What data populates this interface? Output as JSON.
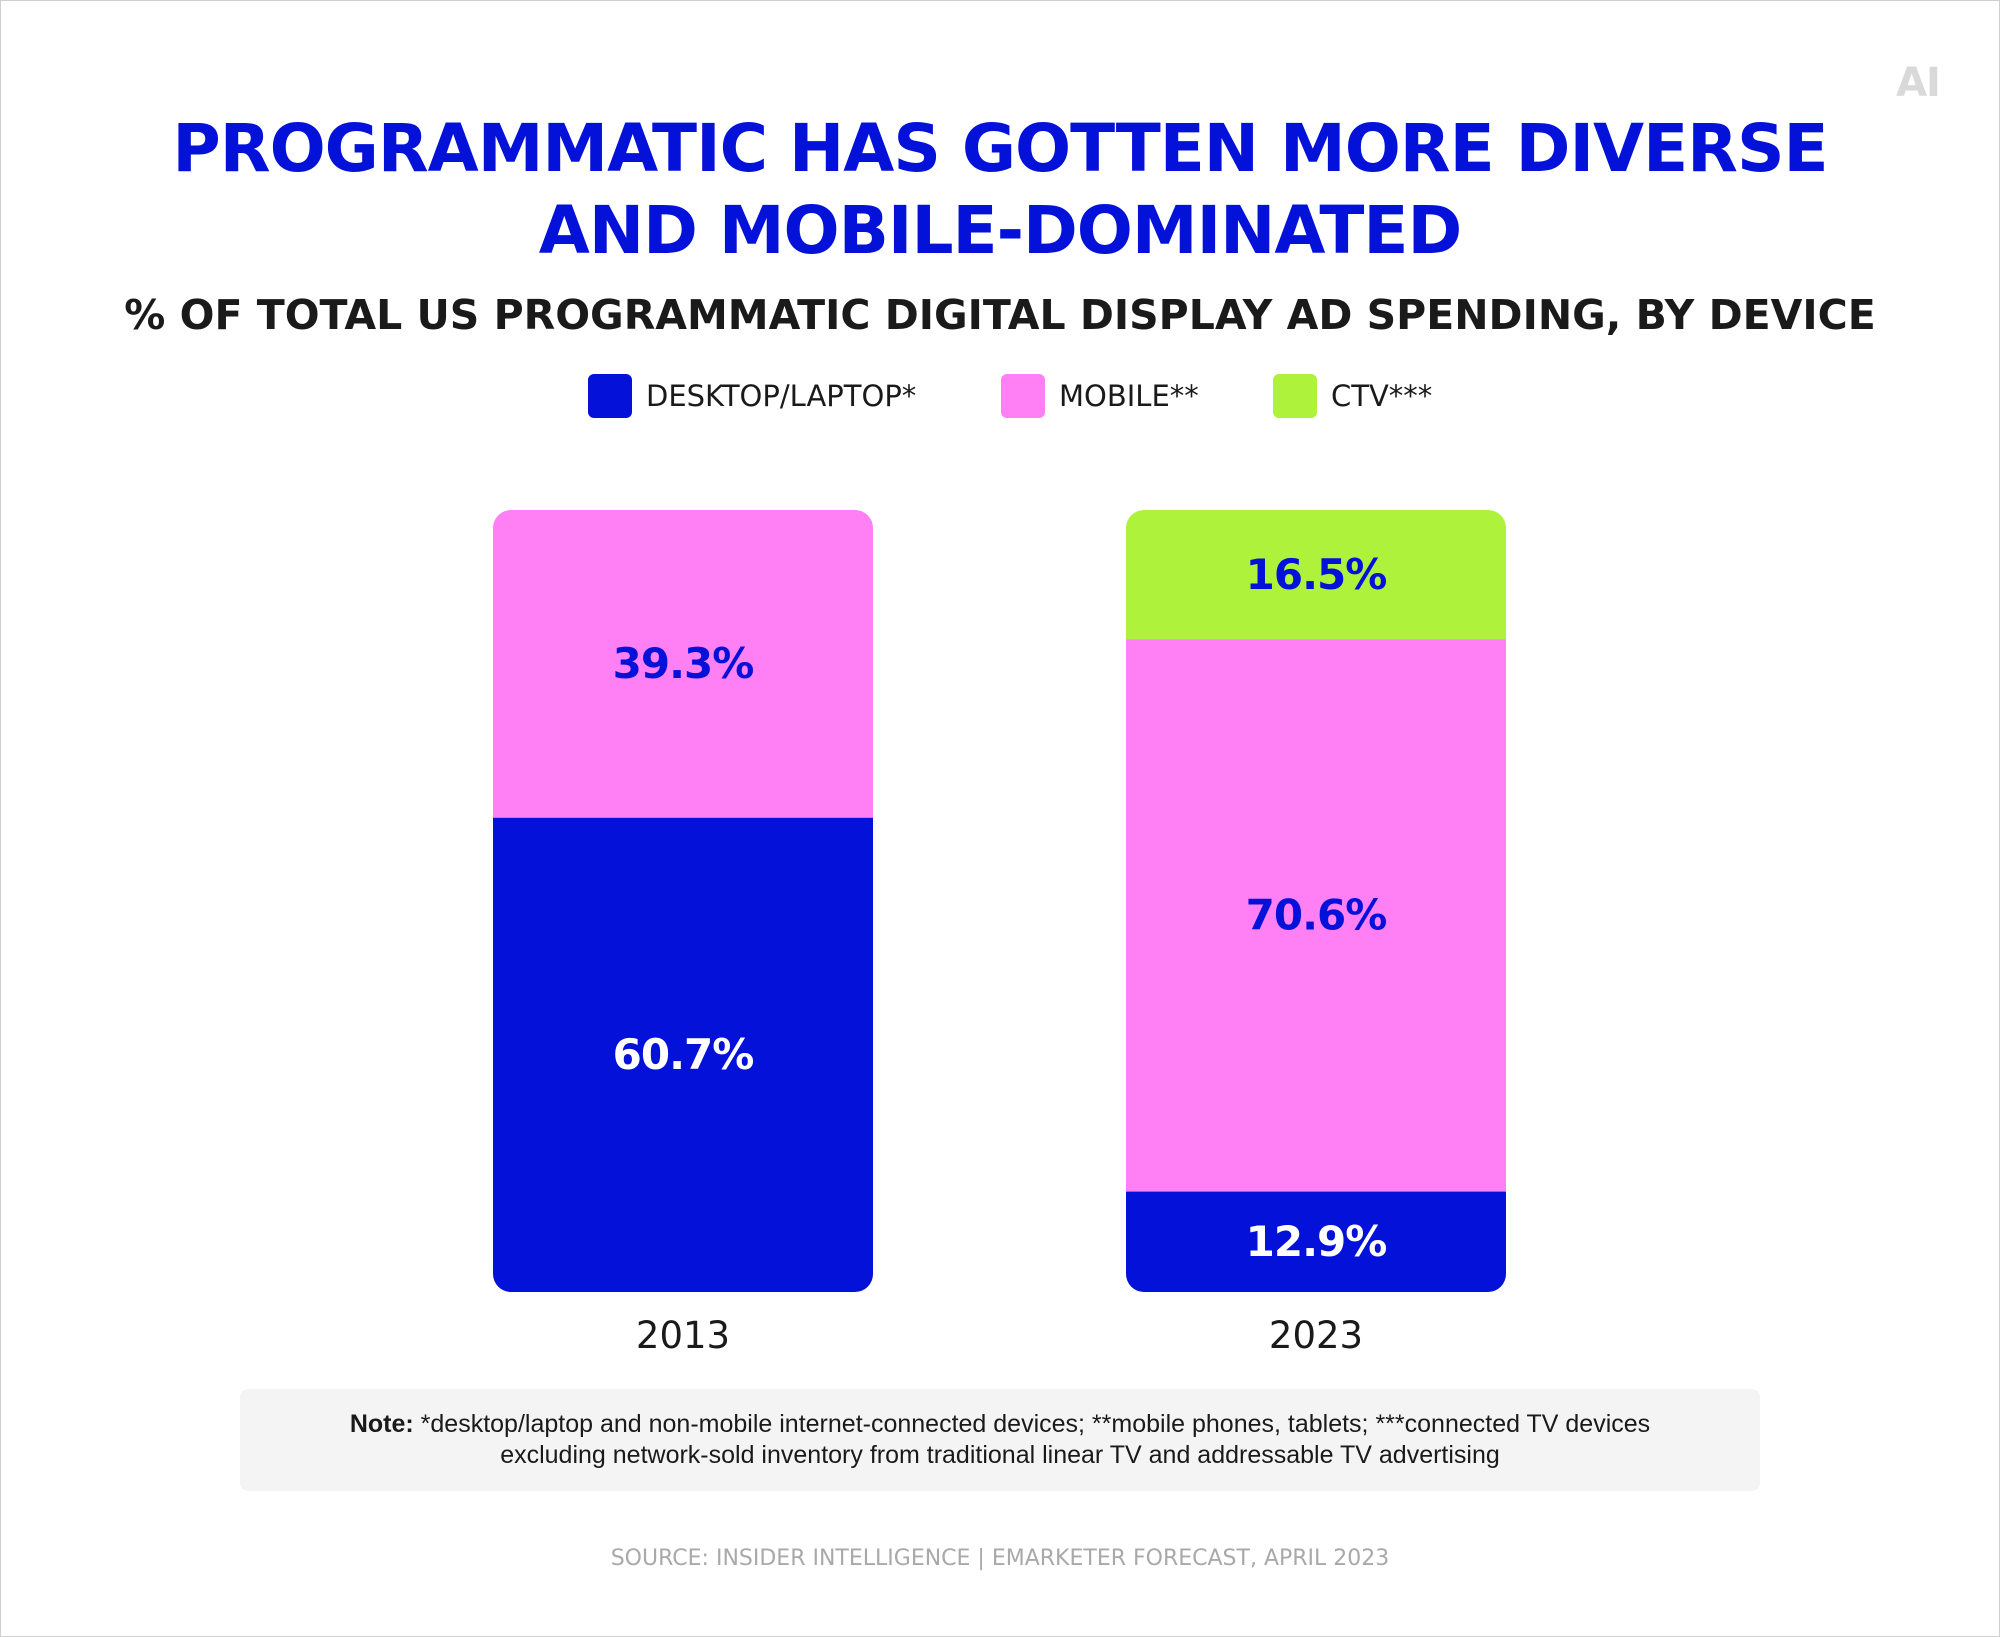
{
  "brand": {
    "logo_text": "AI"
  },
  "title_lines": [
    "PROGRAMMATIC HAS GOTTEN MORE DIVERSE",
    "AND MOBILE-DOMINATED"
  ],
  "subtitle": "% OF TOTAL US PROGRAMMATIC DIGITAL DISPLAY AD SPENDING, BY DEVICE",
  "colors": {
    "desktop": "#0311d9",
    "mobile": "#ff80f5",
    "ctv": "#aef23b",
    "label_on_dark": "#ffffff",
    "label_on_light": "#0311d9"
  },
  "legend": [
    {
      "label": "DESKTOP/LAPTOP*",
      "color": "#0311d9"
    },
    {
      "label": "MOBILE**",
      "color": "#ff80f5"
    },
    {
      "label": "CTV***",
      "color": "#aef23b"
    }
  ],
  "chart_data": {
    "type": "bar",
    "stacked": true,
    "categories": [
      "2013",
      "2023"
    ],
    "series": [
      {
        "name": "DESKTOP/LAPTOP*",
        "values": [
          60.7,
          12.9
        ],
        "labels": [
          "60.7%",
          "12.9%"
        ],
        "color": "#0311d9"
      },
      {
        "name": "MOBILE**",
        "values": [
          39.3,
          70.6
        ],
        "labels": [
          "39.3%",
          "70.6%"
        ],
        "color": "#ff80f5"
      },
      {
        "name": "CTV***",
        "values": [
          0,
          16.5
        ],
        "labels": [
          "",
          "16.5%"
        ],
        "color": "#aef23b"
      }
    ],
    "ylim": [
      0,
      100
    ],
    "unit": "%",
    "title": "% OF TOTAL US PROGRAMMATIC DIGITAL DISPLAY AD SPENDING, BY DEVICE",
    "xlabel": "",
    "ylabel": "",
    "grid": false,
    "legend_position": "top-center"
  },
  "note": {
    "label": "Note:",
    "line1": "*desktop/laptop and non-mobile internet-connected devices; **mobile phones, tablets; ***connected TV devices",
    "line2": "excluding network-sold inventory from traditional linear TV and addressable TV advertising"
  },
  "source": "SOURCE: INSIDER INTELLIGENCE | EMARKETER FORECAST, APRIL 2023"
}
